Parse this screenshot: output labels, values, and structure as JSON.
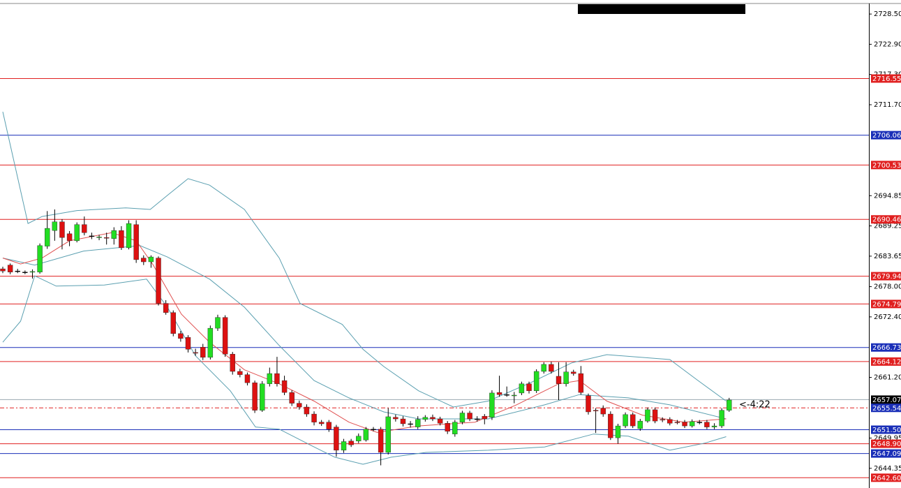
{
  "chart_data": {
    "type": "candlestick",
    "ylim": [
      2640.7,
      2731.1
    ],
    "yticks": [
      {
        "value": 2728.5,
        "label": "2728.50"
      },
      {
        "value": 2722.9,
        "label": "2722.90"
      },
      {
        "value": 2717.3,
        "label": "2717.30"
      },
      {
        "value": 2711.7,
        "label": "2711.70"
      },
      2694.85,
      2689.25,
      2683.65,
      {
        "value": 2678.0,
        "label": "2678.00"
      },
      {
        "value": 2672.4,
        "label": "2672.40"
      },
      {
        "value": 2661.2,
        "label": "2661.20"
      },
      2649.95,
      2644.35
    ],
    "up_color": "#22dd22",
    "down_color": "#dd1111",
    "flat_color": "#000000",
    "ohlc": [
      [
        2681.3,
        2681.7,
        2680.5,
        2680.9
      ],
      [
        2682.0,
        2682.3,
        2680.3,
        2680.7
      ],
      [
        2680.9,
        2681.3,
        2680.5,
        2680.9
      ],
      [
        2680.7,
        2681.0,
        2680.3,
        2680.7
      ],
      [
        2680.7,
        2681.2,
        2679.5,
        2680.8
      ],
      [
        2680.7,
        2686.0,
        2680.4,
        2685.6
      ],
      [
        2685.5,
        2692.0,
        2685.0,
        2688.8
      ],
      [
        2688.4,
        2692.3,
        2686.5,
        2690.0
      ],
      [
        2690.0,
        2690.5,
        2684.9,
        2687.1
      ],
      [
        2687.8,
        2688.3,
        2685.5,
        2686.5
      ],
      [
        2686.5,
        2689.9,
        2686.2,
        2689.5
      ],
      [
        2689.5,
        2691.0,
        2687.5,
        2688.0
      ],
      [
        2687.4,
        2688.0,
        2686.8,
        2687.4
      ],
      [
        2687.1,
        2687.6,
        2686.6,
        2687.2
      ],
      [
        2687.1,
        2688.0,
        2685.8,
        2687.0
      ],
      [
        2686.9,
        2689.0,
        2685.8,
        2688.4
      ],
      [
        2688.4,
        2689.2,
        2684.8,
        2685.2
      ],
      [
        2685.2,
        2690.3,
        2684.9,
        2689.7
      ],
      [
        2689.5,
        2690.3,
        2682.4,
        2683.0
      ],
      [
        2683.3,
        2683.8,
        2682.0,
        2682.6
      ],
      [
        2682.6,
        2683.8,
        2681.5,
        2683.5
      ],
      [
        2683.3,
        2683.6,
        2674.5,
        2674.9
      ],
      [
        2674.9,
        2675.5,
        2672.8,
        2673.2
      ],
      [
        2673.2,
        2673.6,
        2668.8,
        2669.3
      ],
      [
        2669.3,
        2669.8,
        2667.8,
        2668.4
      ],
      [
        2668.6,
        2669.0,
        2665.8,
        2666.4
      ],
      [
        2665.8,
        2666.5,
        2665.2,
        2665.7
      ],
      [
        2666.8,
        2667.4,
        2664.4,
        2664.9
      ],
      [
        2664.9,
        2670.8,
        2664.5,
        2670.3
      ],
      [
        2670.3,
        2672.8,
        2669.8,
        2672.3
      ],
      [
        2672.3,
        2672.7,
        2665.0,
        2665.5
      ],
      [
        2665.5,
        2665.9,
        2661.7,
        2662.3
      ],
      [
        2662.3,
        2662.8,
        2661.2,
        2661.7
      ],
      [
        2661.7,
        2662.1,
        2659.7,
        2660.2
      ],
      [
        2660.2,
        2660.6,
        2654.6,
        2655.1
      ],
      [
        2655.1,
        2660.5,
        2654.8,
        2660.0
      ],
      [
        2660.0,
        2663.0,
        2659.5,
        2661.9
      ],
      [
        2661.9,
        2665.0,
        2659.5,
        2660.0
      ],
      [
        2660.6,
        2661.5,
        2657.9,
        2658.4
      ],
      [
        2658.4,
        2658.8,
        2655.9,
        2656.4
      ],
      [
        2656.4,
        2656.9,
        2655.2,
        2655.7
      ],
      [
        2655.7,
        2656.2,
        2653.9,
        2654.4
      ],
      [
        2654.4,
        2654.9,
        2652.3,
        2652.9
      ],
      [
        2652.9,
        2653.3,
        2652.2,
        2652.6
      ],
      [
        2652.9,
        2653.3,
        2651.1,
        2651.6
      ],
      [
        2652.0,
        2652.4,
        2646.5,
        2647.7
      ],
      [
        2647.7,
        2649.8,
        2647.2,
        2649.3
      ],
      [
        2649.4,
        2649.8,
        2648.3,
        2648.7
      ],
      [
        2649.4,
        2650.8,
        2649.0,
        2650.3
      ],
      [
        2649.6,
        2652.0,
        2649.3,
        2651.6
      ],
      [
        2651.6,
        2652.0,
        2651.2,
        2651.6
      ],
      [
        2651.6,
        2652.0,
        2644.9,
        2647.3
      ],
      [
        2647.3,
        2655.5,
        2646.9,
        2653.9
      ],
      [
        2653.8,
        2654.3,
        2653.0,
        2653.5
      ],
      [
        2653.5,
        2654.0,
        2652.1,
        2652.6
      ],
      [
        2652.6,
        2653.1,
        2651.9,
        2652.6
      ],
      [
        2652.0,
        2654.0,
        2651.6,
        2653.4
      ],
      [
        2653.4,
        2654.2,
        2653.0,
        2653.8
      ],
      [
        2653.8,
        2654.3,
        2653.1,
        2653.5
      ],
      [
        2653.5,
        2653.9,
        2652.3,
        2652.7
      ],
      [
        2652.7,
        2653.1,
        2650.7,
        2651.2
      ],
      [
        2650.7,
        2653.3,
        2650.2,
        2652.9
      ],
      [
        2652.9,
        2655.0,
        2652.5,
        2654.6
      ],
      [
        2654.6,
        2655.0,
        2653.1,
        2653.5
      ],
      [
        2653.5,
        2654.0,
        2653.0,
        2653.5
      ],
      [
        2654.0,
        2654.4,
        2652.5,
        2653.5
      ],
      [
        2653.8,
        2658.8,
        2653.3,
        2658.3
      ],
      [
        2658.4,
        2661.5,
        2657.6,
        2658.0
      ],
      [
        2658.0,
        2659.5,
        2657.6,
        2658.0
      ],
      [
        2657.8,
        2658.5,
        2656.4,
        2657.9
      ],
      [
        2658.3,
        2660.4,
        2657.9,
        2660.0
      ],
      [
        2660.0,
        2660.4,
        2658.2,
        2658.7
      ],
      [
        2658.7,
        2662.7,
        2658.3,
        2662.3
      ],
      [
        2662.3,
        2664.0,
        2661.9,
        2663.6
      ],
      [
        2663.6,
        2664.1,
        2661.9,
        2662.3
      ],
      [
        2661.4,
        2664.0,
        2657.0,
        2660.0
      ],
      [
        2660.0,
        2664.0,
        2659.5,
        2662.2
      ],
      [
        2662.2,
        2662.6,
        2661.5,
        2661.9
      ],
      [
        2661.9,
        2663.3,
        2658.0,
        2658.4
      ],
      [
        2657.8,
        2658.2,
        2654.3,
        2654.8
      ],
      [
        2655.1,
        2655.5,
        2650.9,
        2655.0
      ],
      [
        2655.5,
        2656.0,
        2653.9,
        2654.4
      ],
      [
        2654.4,
        2654.9,
        2649.6,
        2650.0
      ],
      [
        2650.0,
        2652.6,
        2648.9,
        2652.2
      ],
      [
        2652.2,
        2654.7,
        2651.8,
        2654.3
      ],
      [
        2654.3,
        2654.7,
        2651.8,
        2652.2
      ],
      [
        2651.7,
        2653.5,
        2651.3,
        2653.1
      ],
      [
        2653.1,
        2655.6,
        2652.8,
        2655.2
      ],
      [
        2655.2,
        2655.6,
        2652.7,
        2653.1
      ],
      [
        2653.4,
        2653.8,
        2652.9,
        2653.3
      ],
      [
        2653.4,
        2653.8,
        2652.3,
        2652.7
      ],
      [
        2652.9,
        2653.3,
        2652.5,
        2652.8
      ],
      [
        2652.9,
        2653.3,
        2651.8,
        2652.2
      ],
      [
        2652.2,
        2653.4,
        2651.9,
        2653.0
      ],
      [
        2652.9,
        2653.3,
        2652.5,
        2652.9
      ],
      [
        2652.9,
        2653.3,
        2651.6,
        2652.0
      ],
      [
        2652.0,
        2652.7,
        2651.6,
        2652.2
      ],
      [
        2652.2,
        2655.5,
        2651.8,
        2655.1
      ],
      [
        2655.1,
        2657.4,
        2654.8,
        2657.0
      ]
    ],
    "overlays": [
      {
        "color": "#5a9fb0",
        "x": [
          0,
          3.4,
          5.3,
          10,
          16.6,
          19.9,
          22.2,
          25,
          27.9,
          32.6,
          37.3,
          40.1,
          45.8,
          48.6,
          51.4,
          56.1,
          60.8,
          65.5,
          71.2,
          76.8,
          81.5,
          90,
          93.8,
          97.6
        ],
        "values": [
          2710.4,
          2689.7,
          2691.0,
          2692.1,
          2692.6,
          2692.3,
          2694.9,
          2698.0,
          2696.8,
          2692.3,
          2683.3,
          2674.9,
          2671.0,
          2666.4,
          2663.2,
          2658.7,
          2655.7,
          2656.8,
          2660.2,
          2663.9,
          2665.4,
          2664.5,
          2660.6,
          2656.8
        ]
      },
      {
        "color": "#5a9fb0",
        "x": [
          0,
          4.3,
          10.9,
          18.5,
          22.2,
          27.9,
          32.6,
          37.3,
          42,
          46.7,
          51.4,
          56.1,
          65.5,
          73.1,
          77.8,
          84.4,
          90,
          97.6
        ],
        "values": [
          2683.3,
          2682.0,
          2684.6,
          2685.6,
          2683.5,
          2679.4,
          2674.2,
          2667.1,
          2660.6,
          2657.4,
          2654.8,
          2653.5,
          2653.5,
          2656.1,
          2658.0,
          2657.4,
          2656.1,
          2653.5
        ]
      },
      {
        "color": "#5a9fb0",
        "x": [
          0,
          2.4,
          4.3,
          7.2,
          13.7,
          19.4,
          22.2,
          26,
          30.7,
          34.1,
          37.3,
          42,
          44.8,
          48.6,
          52.4,
          57.1,
          65.5,
          73.1,
          79.7,
          84.4,
          90,
          94.7,
          97.6
        ],
        "values": [
          2667.7,
          2671.6,
          2680.0,
          2678.1,
          2678.3,
          2679.4,
          2674.2,
          2665.2,
          2658.7,
          2652.0,
          2651.6,
          2648.3,
          2646.4,
          2645.1,
          2646.4,
          2647.3,
          2647.7,
          2648.3,
          2650.7,
          2650.3,
          2647.7,
          2649.0,
          2650.2
        ]
      },
      {
        "color": "#e05050",
        "x": [
          0,
          2.4,
          5.3,
          9,
          14.7,
          18,
          20.3,
          24.1,
          27.9,
          32.6,
          37.3,
          42,
          46.7,
          50.5,
          56.1,
          63.7,
          69.3,
          75,
          77.8,
          81.5,
          86.3,
          91.9,
          97.6
        ],
        "values": [
          2683.3,
          2682.2,
          2683.3,
          2686.5,
          2688.0,
          2686.5,
          2682.0,
          2672.9,
          2667.7,
          2662.6,
          2660.0,
          2656.8,
          2652.9,
          2651.0,
          2652.2,
          2652.9,
          2656.1,
          2660.0,
          2660.6,
          2656.8,
          2654.2,
          2652.9,
          2653.5
        ]
      }
    ],
    "levels": [
      {
        "value": 2716.55,
        "color": "#e02020"
      },
      {
        "value": 2706.06,
        "color": "#1a2fb8"
      },
      {
        "value": 2700.53,
        "color": "#e02020"
      },
      {
        "value": 2690.46,
        "color": "#e02020"
      },
      {
        "value": 2679.94,
        "color": "#e02020"
      },
      {
        "value": 2674.79,
        "color": "#e02020"
      },
      {
        "value": 2666.73,
        "color": "#1a2fb8"
      },
      {
        "value": 2664.12,
        "color": "#e02020"
      },
      {
        "value": 2657.07,
        "color": "#9aa8b0",
        "label_color": "#000000"
      },
      {
        "value": 2655.54,
        "color": "#e02020",
        "label_color": "#1a2fb8",
        "dashed": true
      },
      {
        "value": 2651.5,
        "label": "2651.50",
        "color": "#1a2fb8"
      },
      {
        "value": 2648.9,
        "label": "2648.90",
        "color": "#e02020"
      },
      {
        "value": 2647.09,
        "color": "#1a2fb8"
      },
      {
        "value": 2642.6,
        "label": "2642.60",
        "color": "#e02020"
      }
    ],
    "timer": "<-4:22"
  }
}
